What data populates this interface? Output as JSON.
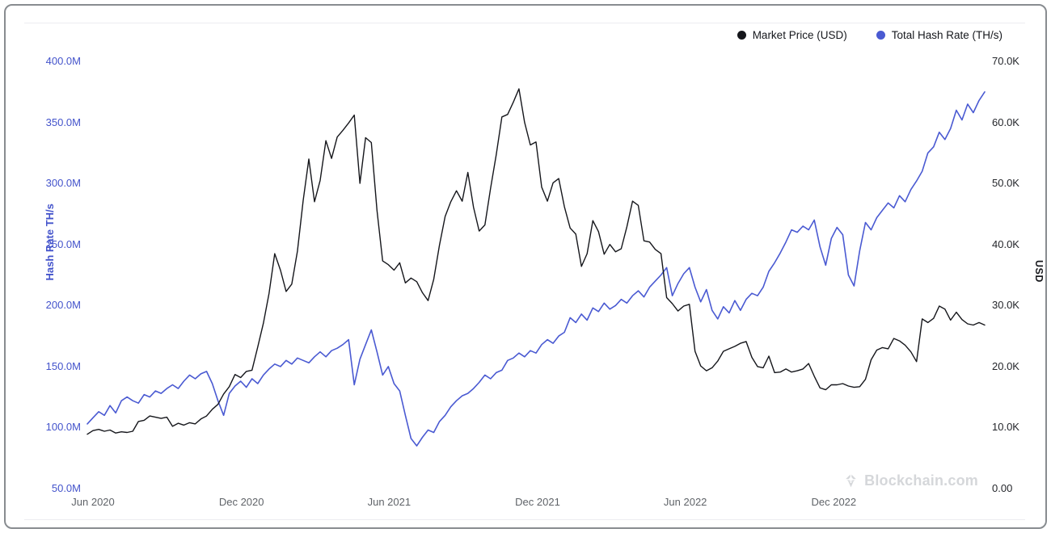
{
  "colors": {
    "price_line": "#15161b",
    "hash_line": "#4a5ad2",
    "left_axis_text": "#4353cb",
    "right_axis_text": "#24262b",
    "x_axis_text": "#5f6368",
    "watermark_text": "#d5d7da",
    "frame_border": "#888c90"
  },
  "legend": {
    "items": [
      {
        "label": "Market Price (USD)",
        "color": "#15161b"
      },
      {
        "label": "Total Hash Rate (TH/s)",
        "color": "#4a5ad2"
      }
    ]
  },
  "watermark": {
    "label": "Blockchain.com",
    "icon": "blockchain-logo-icon"
  },
  "chart_data": {
    "type": "line",
    "title": "",
    "x_axis": {
      "start_date": "2020-05-25",
      "interval_days": 7,
      "total_days": 1106,
      "ticks": [
        {
          "label": "Jun 2020",
          "t_days": 7
        },
        {
          "label": "Dec 2020",
          "t_days": 190
        },
        {
          "label": "Jun 2021",
          "t_days": 372
        },
        {
          "label": "Dec 2021",
          "t_days": 555
        },
        {
          "label": "Jun 2022",
          "t_days": 737
        },
        {
          "label": "Dec 2022",
          "t_days": 920
        }
      ]
    },
    "axes": {
      "left": {
        "title": "Hash Rate TH/s",
        "range": [
          50,
          400
        ],
        "ticks": [
          {
            "label": "400.0M",
            "value": 400
          },
          {
            "label": "350.0M",
            "value": 350
          },
          {
            "label": "300.0M",
            "value": 300
          },
          {
            "label": "250.0M",
            "value": 250
          },
          {
            "label": "200.0M",
            "value": 200
          },
          {
            "label": "150.0M",
            "value": 150
          },
          {
            "label": "100.0M",
            "value": 100
          },
          {
            "label": "50.0M",
            "value": 50
          }
        ]
      },
      "right": {
        "title": "USD",
        "range": [
          0,
          70
        ],
        "ticks": [
          {
            "label": "70.0K",
            "value": 70
          },
          {
            "label": "60.0K",
            "value": 60
          },
          {
            "label": "50.0K",
            "value": 50
          },
          {
            "label": "40.0K",
            "value": 40
          },
          {
            "label": "30.0K",
            "value": 30
          },
          {
            "label": "20.0K",
            "value": 20
          },
          {
            "label": "10.0K",
            "value": 10
          },
          {
            "label": "0.00",
            "value": 0
          }
        ]
      }
    },
    "series": [
      {
        "name": "Market Price (USD)",
        "axis": "right",
        "units": "K USD",
        "color": "#15161b",
        "values": [
          8.9,
          9.5,
          9.7,
          9.4,
          9.6,
          9.1,
          9.3,
          9.2,
          9.4,
          11.0,
          11.2,
          11.9,
          11.7,
          11.5,
          11.7,
          10.2,
          10.7,
          10.4,
          10.8,
          10.6,
          11.4,
          11.9,
          13.0,
          13.8,
          15.5,
          16.7,
          18.7,
          18.2,
          19.2,
          19.4,
          23.2,
          27.1,
          32.0,
          38.5,
          35.8,
          32.3,
          33.5,
          38.9,
          47.2,
          54.0,
          47.0,
          50.5,
          57.0,
          54.1,
          57.6,
          58.7,
          59.9,
          61.2,
          50.0,
          57.5,
          56.7,
          45.6,
          37.3,
          36.7,
          35.8,
          37.0,
          33.7,
          34.5,
          33.9,
          32.1,
          30.8,
          34.3,
          39.9,
          44.6,
          47.0,
          48.8,
          47.1,
          51.8,
          46.1,
          42.2,
          43.2,
          49.2,
          54.7,
          60.9,
          61.3,
          63.3,
          65.5,
          60.0,
          56.3,
          56.8,
          49.4,
          47.1,
          50.1,
          50.8,
          46.2,
          42.7,
          41.7,
          36.4,
          38.5,
          43.9,
          42.1,
          38.4,
          40.0,
          38.8,
          39.3,
          42.9,
          47.1,
          46.4,
          40.6,
          40.4,
          39.2,
          38.5,
          31.3,
          30.3,
          29.1,
          29.9,
          30.2,
          22.5,
          20.1,
          19.3,
          19.8,
          20.9,
          22.5,
          22.9,
          23.3,
          23.8,
          24.1,
          21.5,
          20.0,
          19.8,
          21.7,
          19.0,
          19.1,
          19.6,
          19.1,
          19.3,
          19.6,
          20.5,
          18.4,
          16.5,
          16.2,
          17.0,
          17.0,
          17.2,
          16.8,
          16.6,
          16.7,
          17.9,
          21.1,
          22.7,
          23.1,
          22.9,
          24.6,
          24.2,
          23.5,
          22.4,
          20.8,
          27.8,
          27.2,
          27.9,
          29.9,
          29.4,
          27.6,
          28.9,
          27.7,
          27.0,
          26.8,
          27.2,
          26.8
        ]
      },
      {
        "name": "Total Hash Rate (TH/s)",
        "axis": "left",
        "units": "M TH/s",
        "color": "#4a5ad2",
        "values": [
          103,
          108,
          113,
          110,
          118,
          112,
          122,
          125,
          122,
          120,
          127,
          125,
          130,
          128,
          132,
          135,
          132,
          138,
          143,
          140,
          144,
          146,
          136,
          122,
          110,
          128,
          134,
          138,
          133,
          140,
          136,
          143,
          148,
          152,
          150,
          155,
          152,
          157,
          155,
          153,
          158,
          162,
          158,
          163,
          165,
          168,
          172,
          135,
          156,
          168,
          180,
          162,
          143,
          150,
          136,
          130,
          110,
          91,
          85,
          92,
          98,
          96,
          105,
          110,
          117,
          122,
          126,
          128,
          132,
          137,
          143,
          140,
          145,
          147,
          155,
          157,
          161,
          158,
          163,
          161,
          168,
          172,
          169,
          175,
          178,
          190,
          186,
          193,
          188,
          198,
          195,
          202,
          197,
          200,
          205,
          202,
          208,
          212,
          207,
          215,
          220,
          225,
          231,
          208,
          218,
          226,
          231,
          215,
          203,
          213,
          196,
          189,
          199,
          194,
          204,
          196,
          205,
          210,
          208,
          215,
          228,
          235,
          243,
          252,
          262,
          260,
          265,
          262,
          270,
          248,
          233,
          255,
          264,
          258,
          225,
          216,
          245,
          268,
          262,
          272,
          278,
          284,
          280,
          290,
          285,
          295,
          302,
          310,
          325,
          330,
          342,
          336,
          345,
          360,
          352,
          365,
          358,
          368,
          375
        ]
      }
    ],
    "legend_position": "top-right",
    "grid": "off"
  }
}
